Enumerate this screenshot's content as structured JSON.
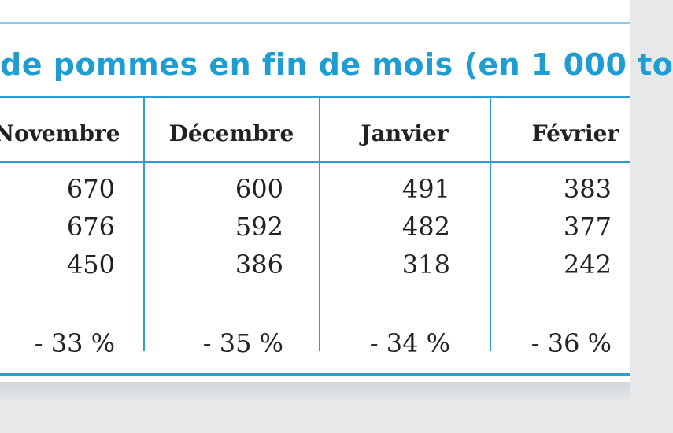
{
  "title": "de pommes en fin de mois (en 1 000 to",
  "columns": [
    {
      "header": "Novembre",
      "values": [
        "670",
        "676",
        "450"
      ],
      "change": "- 33 %"
    },
    {
      "header": "Décembre",
      "values": [
        "600",
        "592",
        "386"
      ],
      "change": "- 35 %"
    },
    {
      "header": "Janvier",
      "values": [
        "491",
        "482",
        "318"
      ],
      "change": "- 34 %"
    },
    {
      "header": "Février",
      "values": [
        "383",
        "377",
        "242"
      ],
      "change": "- 36 %"
    }
  ]
}
